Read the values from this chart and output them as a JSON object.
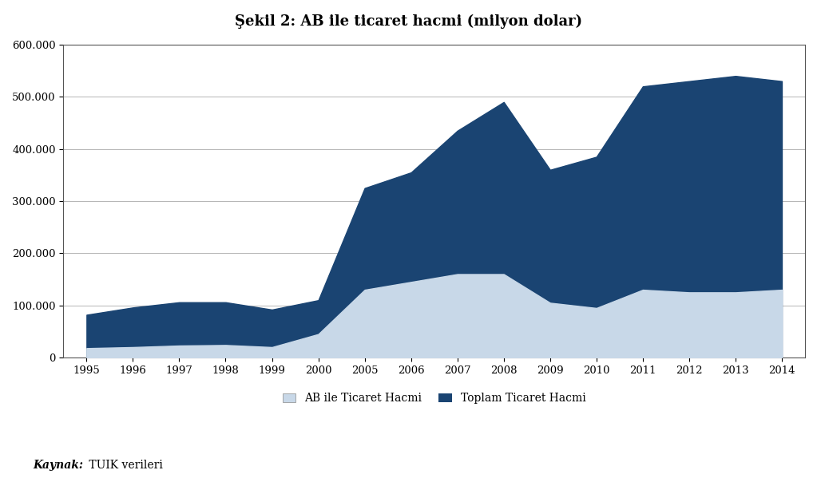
{
  "title": "Şekil 2: AB ile ticaret hacmi (milyon dolar)",
  "years": [
    "1995",
    "1996",
    "1997",
    "1998",
    "1999",
    "2000",
    "2005",
    "2006",
    "2007",
    "2008",
    "2009",
    "2010",
    "2011",
    "2012",
    "2013",
    "2014"
  ],
  "ab_trade": [
    18000,
    20000,
    23000,
    24000,
    20000,
    45000,
    130000,
    145000,
    160000,
    160000,
    105000,
    95000,
    130000,
    125000,
    125000,
    130000
  ],
  "total_trade": [
    82000,
    96000,
    106000,
    106000,
    92000,
    110000,
    325000,
    355000,
    435000,
    490000,
    360000,
    385000,
    520000,
    530000,
    540000,
    530000
  ],
  "ab_color": "#c8d8e8",
  "total_color": "#1a4472",
  "ylim": [
    0,
    600000
  ],
  "yticks": [
    0,
    100000,
    200000,
    300000,
    400000,
    500000,
    600000
  ],
  "ytick_labels": [
    "0",
    "100.000",
    "200.000",
    "300.000",
    "400.000",
    "500.000",
    "600.000"
  ],
  "legend_ab": "AB ile Ticaret Hacmi",
  "legend_total": "Toplam Ticaret Hacmi",
  "source_bold": "Kaynak:",
  "source_normal": " TUIK verileri",
  "bg_color": "#ffffff",
  "plot_bg": "#ffffff",
  "box_color": "#555555"
}
